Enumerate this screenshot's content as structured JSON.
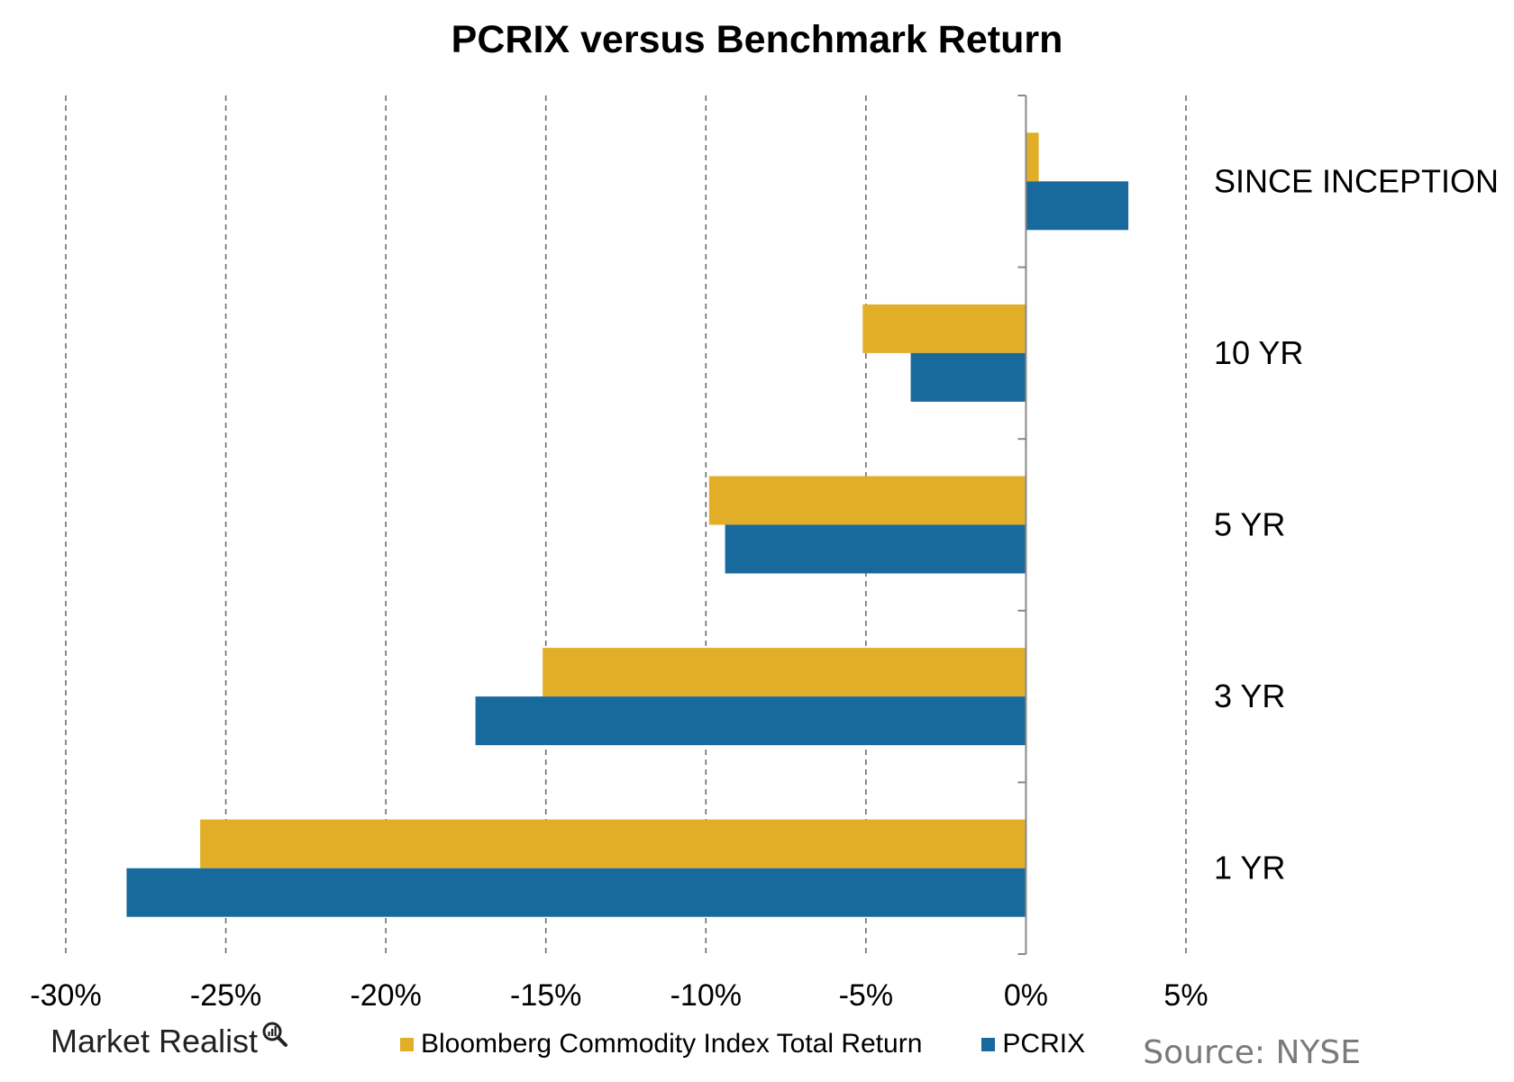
{
  "chart_data": {
    "type": "bar",
    "orientation": "horizontal",
    "title": "PCRIX versus Benchmark Return",
    "categories": [
      "SINCE INCEPTION",
      "10 YR",
      "5 YR",
      "3 YR",
      "1 YR"
    ],
    "series": [
      {
        "name": "Bloomberg Commodity Index Total Return",
        "color": "#e2ae28",
        "values": [
          0.4,
          -5.1,
          -9.9,
          -15.1,
          -25.8
        ]
      },
      {
        "name": "PCRIX",
        "color": "#186a9c",
        "values": [
          3.2,
          -3.6,
          -9.4,
          -17.2,
          -28.1
        ]
      }
    ],
    "xlim": [
      -30,
      5
    ],
    "xticks": [
      -30,
      -25,
      -20,
      -15,
      -10,
      -5,
      0,
      5
    ],
    "xtick_labels": [
      "-30%",
      "-25%",
      "-20%",
      "-15%",
      "-10%",
      "-5%",
      "0%",
      "5%"
    ],
    "xlabel": "",
    "ylabel": "",
    "grid": "vertical dashed",
    "legend_position": "bottom"
  },
  "footer": {
    "brand": "Market Realist",
    "brand_icon": "magnifier-chart-icon",
    "source": "Source: NYSE"
  }
}
